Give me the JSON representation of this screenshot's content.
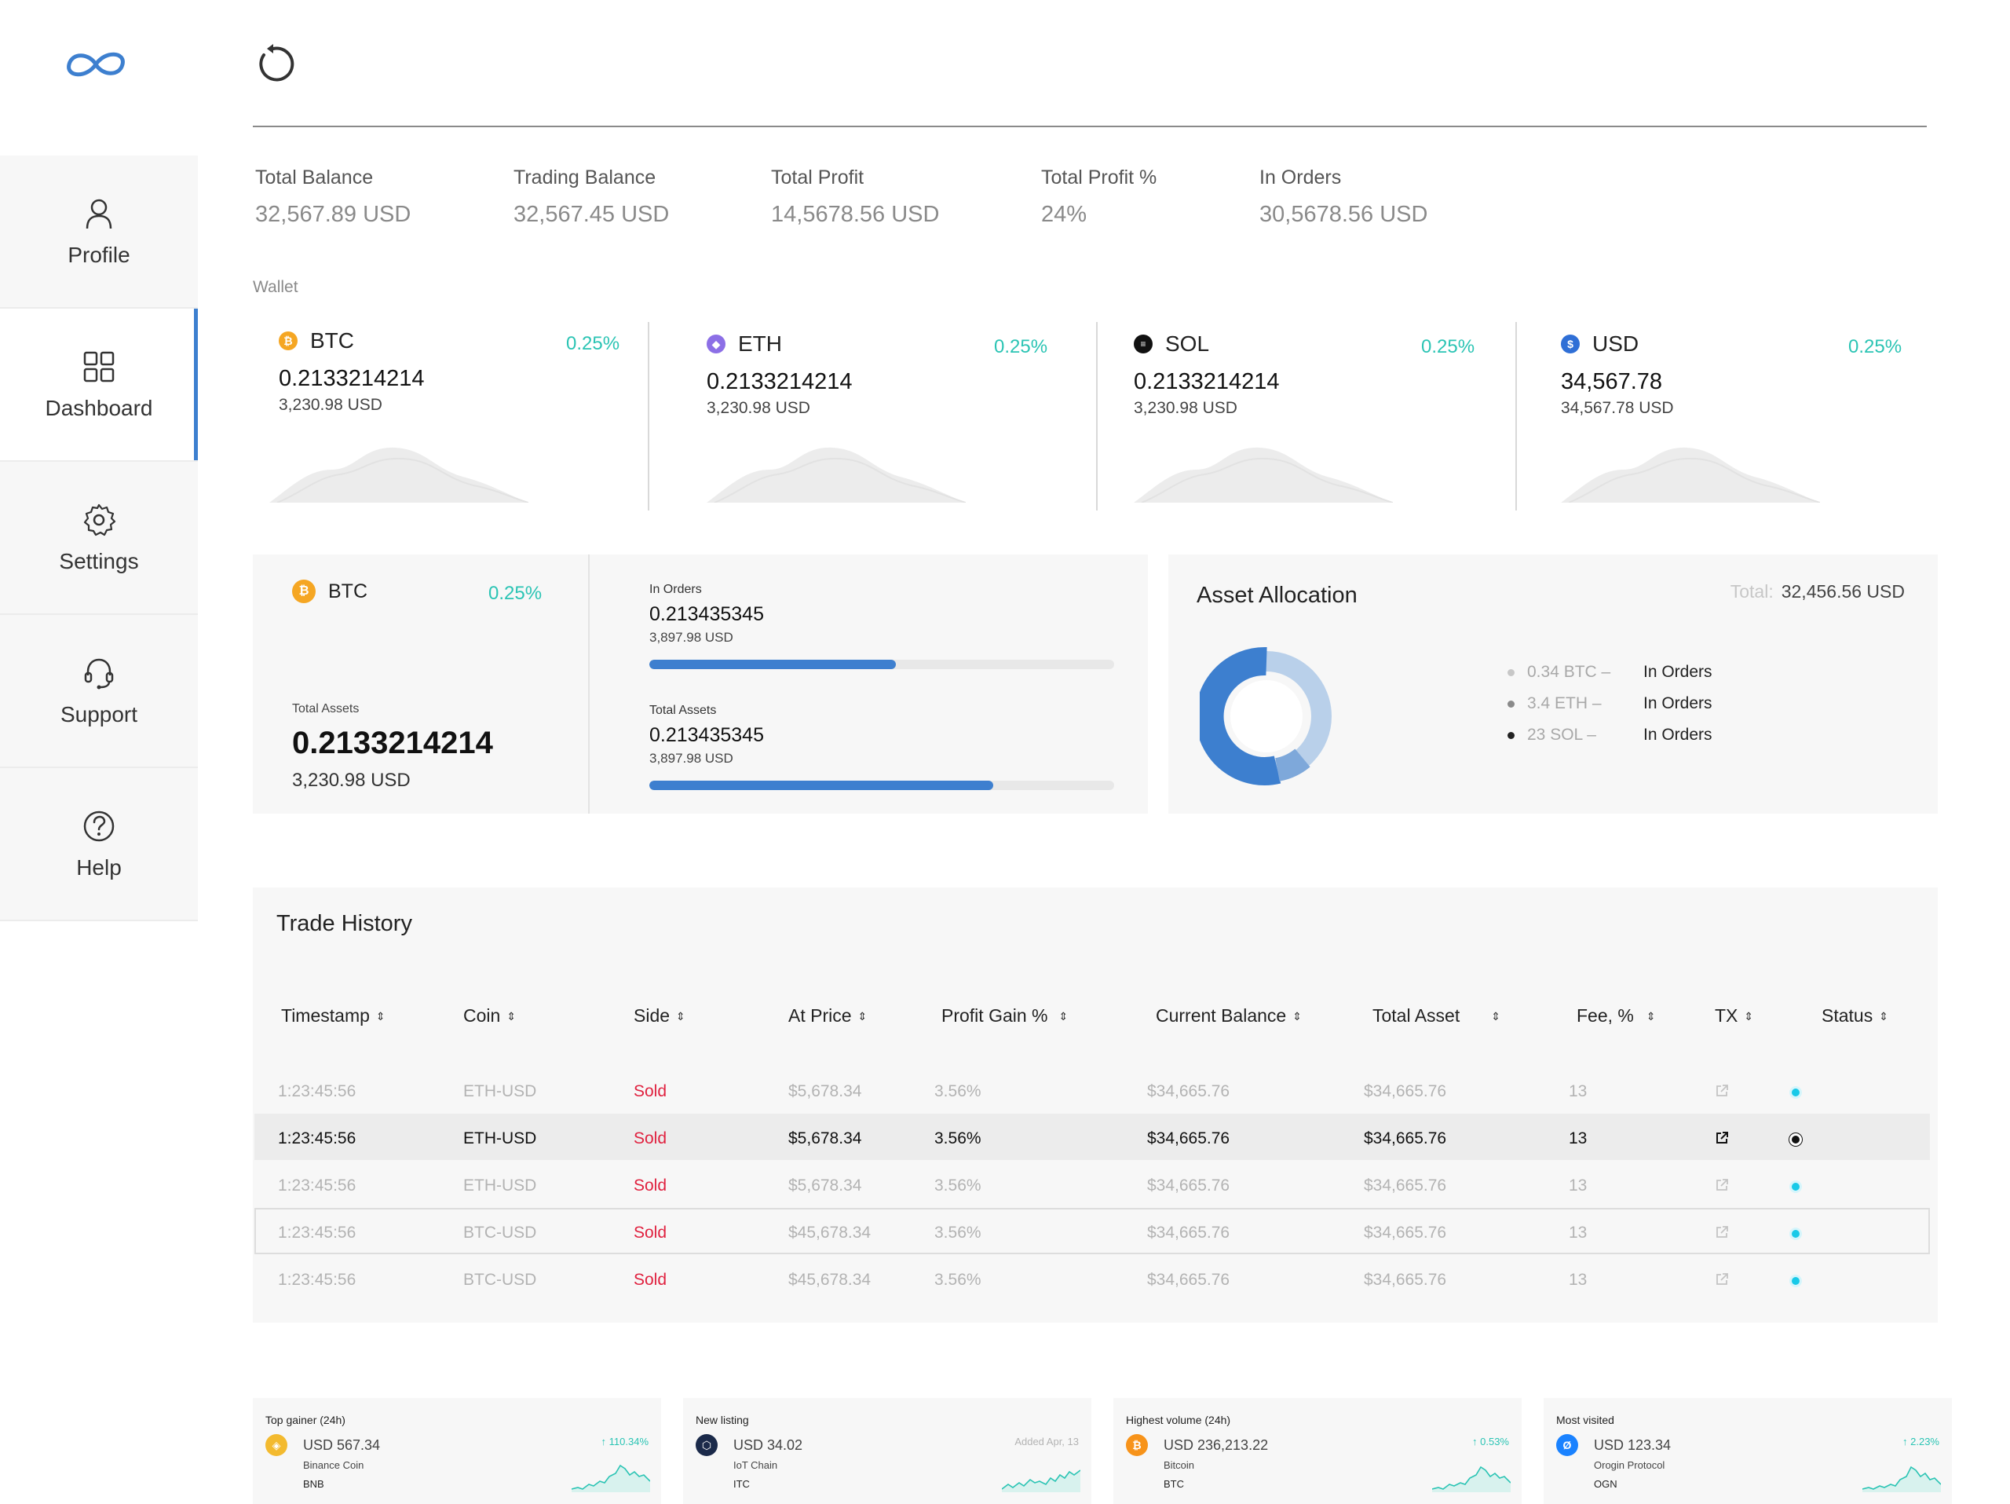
{
  "nav": {
    "items": [
      {
        "label": "Profile",
        "icon": "user-icon"
      },
      {
        "label": "Dashboard",
        "icon": "grid-icon"
      },
      {
        "label": "Settings",
        "icon": "gear-icon"
      },
      {
        "label": "Support",
        "icon": "headset-icon"
      },
      {
        "label": "Help",
        "icon": "question-icon"
      }
    ],
    "active": "Dashboard"
  },
  "summary": [
    {
      "label": "Total Balance",
      "value": "32,567.89 USD"
    },
    {
      "label": "Trading Balance",
      "value": "32,567.45 USD"
    },
    {
      "label": "Total Profit",
      "value": "14,5678.56 USD"
    },
    {
      "label": "Total Profit %",
      "value": "24%"
    },
    {
      "label": "In Orders",
      "value": "30,5678.56 USD"
    }
  ],
  "wallet": {
    "label": "Wallet",
    "cards": [
      {
        "symbol": "BTC",
        "change": "0.25%",
        "amount": "0.2133214214",
        "usd": "3,230.98 USD",
        "color": "#f5a623"
      },
      {
        "symbol": "ETH",
        "change": "0.25%",
        "amount": "0.2133214214",
        "usd": "3,230.98 USD",
        "color": "#8c6fe6"
      },
      {
        "symbol": "SOL",
        "change": "0.25%",
        "amount": "0.2133214214",
        "usd": "3,230.98 USD",
        "color": "#111111"
      },
      {
        "symbol": "USD",
        "change": "0.25%",
        "amount": "34,567.78",
        "usd": "34,567.78 USD",
        "color": "#2f6fd6"
      }
    ]
  },
  "detail": {
    "symbol": "BTC",
    "change": "0.25%",
    "total_assets_label": "Total Assets",
    "total_assets": "0.2133214214",
    "total_usd": "3,230.98 USD",
    "in_orders": {
      "label": "In Orders",
      "amount": "0.213435345",
      "usd": "3,897.98 USD",
      "progress": 0.53
    },
    "total": {
      "label": "Total Assets",
      "amount": "0.213435345",
      "usd": "3,897.98 USD",
      "progress": 0.74
    }
  },
  "allocation": {
    "title": "Asset Allocation",
    "total_label": "Total:",
    "total_value": "32,456.56 USD",
    "items": [
      {
        "coin": "0.34 BTC –",
        "status": "In Orders",
        "color": "#c7c7c7"
      },
      {
        "coin": "3.4 ETH –",
        "status": "In Orders",
        "color": "#8a8a8a"
      },
      {
        "coin": "23 SOL –",
        "status": "In Orders",
        "color": "#222222"
      }
    ]
  },
  "trades": {
    "title": "Trade History",
    "columns": [
      "Timestamp",
      "Coin",
      "Side",
      "At Price",
      "Profit Gain %",
      "Current Balance",
      "Total Asset",
      "Fee, %",
      "TX",
      "Status"
    ],
    "rows": [
      {
        "time": "1:23:45:56",
        "coin": "ETH-USD",
        "side": "Sold",
        "price": "$5,678.34",
        "gain": "3.56%",
        "balance": "$34,665.76",
        "asset": "$34,665.76",
        "fee": "13"
      },
      {
        "time": "1:23:45:56",
        "coin": "ETH-USD",
        "side": "Sold",
        "price": "$5,678.34",
        "gain": "3.56%",
        "balance": "$34,665.76",
        "asset": "$34,665.76",
        "fee": "13"
      },
      {
        "time": "1:23:45:56",
        "coin": "ETH-USD",
        "side": "Sold",
        "price": "$5,678.34",
        "gain": "3.56%",
        "balance": "$34,665.76",
        "asset": "$34,665.76",
        "fee": "13"
      },
      {
        "time": "1:23:45:56",
        "coin": "BTC-USD",
        "side": "Sold",
        "price": "$45,678.34",
        "gain": "3.56%",
        "balance": "$34,665.76",
        "asset": "$34,665.76",
        "fee": "13"
      },
      {
        "time": "1:23:45:56",
        "coin": "BTC-USD",
        "side": "Sold",
        "price": "$45,678.34",
        "gain": "3.56%",
        "balance": "$34,665.76",
        "asset": "$34,665.76",
        "fee": "13"
      }
    ]
  },
  "market": [
    {
      "category": "Top gainer (24h)",
      "price": "USD 567.34",
      "name": "Binance Coin",
      "symbol": "BNB",
      "change": "↑ 110.34%",
      "color": "#f3ba2f"
    },
    {
      "category": "New listing",
      "price": "USD 34.02",
      "name": "IoT Chain",
      "symbol": "ITC",
      "change": "Added Apr, 13",
      "color": "#1b2a4a"
    },
    {
      "category": "Highest volume (24h)",
      "price": "USD 236,213.22",
      "name": "Bitcoin",
      "symbol": "BTC",
      "change": "↑ 0.53%",
      "color": "#f7931a"
    },
    {
      "category": "Most visited",
      "price": "USD 123.34",
      "name": "Orogin Protocol",
      "symbol": "OGN",
      "change": "↑ 2.23%",
      "color": "#1a82ff"
    }
  ],
  "colors": {
    "accent": "#3d7fcf",
    "positive": "#2bc4b4",
    "sold": "#e0213f",
    "status_dot": "#18c9e8"
  }
}
